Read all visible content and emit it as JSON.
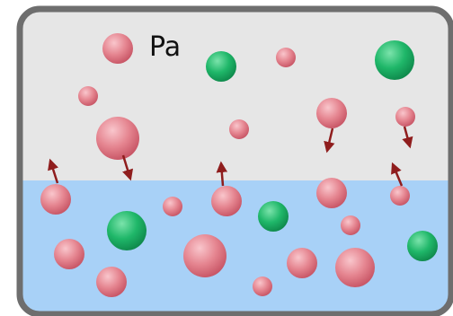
{
  "label": "Pa",
  "colors": {
    "gas_region": "#e6e6e6",
    "liquid_region": "#a8d1f7",
    "container_border": "#6e6e6e",
    "particle_a": "#e07c88",
    "particle_b": "#22b56a",
    "arrow": "#8f1d1d"
  }
}
